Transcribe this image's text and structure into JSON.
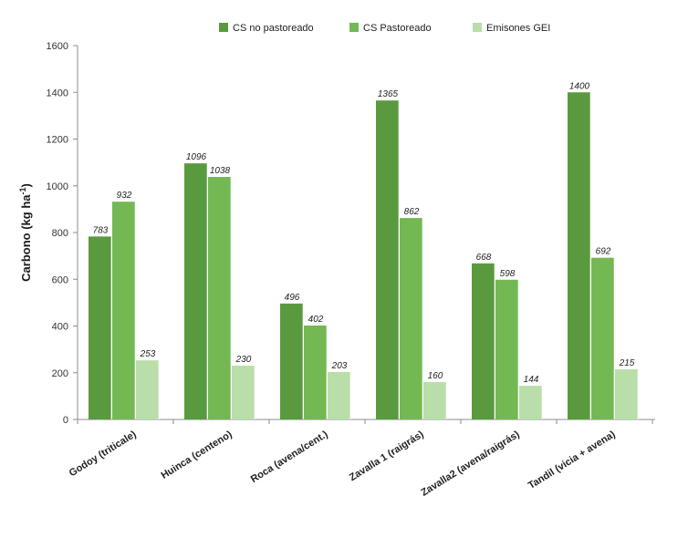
{
  "chart_data": {
    "type": "bar",
    "title": "",
    "xlabel": "",
    "ylabel": "Carbono (kg ha",
    "ylabel_superscript": "-1",
    "ylabel_suffix": ")",
    "ylim": [
      0,
      1600
    ],
    "yticks": [
      0,
      200,
      400,
      600,
      800,
      1000,
      1200,
      1400,
      1600
    ],
    "grid": false,
    "legend_position": "top",
    "categories": [
      "Godoy  (triticale)",
      "Huinca (centeno)",
      "Roca (avena/cent.)",
      "Zavalla 1 (raigrás)",
      "Zavalla2  (avena/raigrás)",
      "Tandil (vicia + avena)"
    ],
    "series": [
      {
        "name": "CS no pastoreado",
        "color": "#5a9a3f",
        "values": [
          783,
          1096,
          496,
          1365,
          668,
          1400
        ]
      },
      {
        "name": "CS Pastoreado",
        "color": "#73b853",
        "values": [
          932,
          1038,
          402,
          862,
          598,
          692
        ]
      },
      {
        "name": "Emisones GEI",
        "color": "#b9deaa",
        "values": [
          253,
          230,
          203,
          160,
          144,
          215
        ]
      }
    ]
  }
}
